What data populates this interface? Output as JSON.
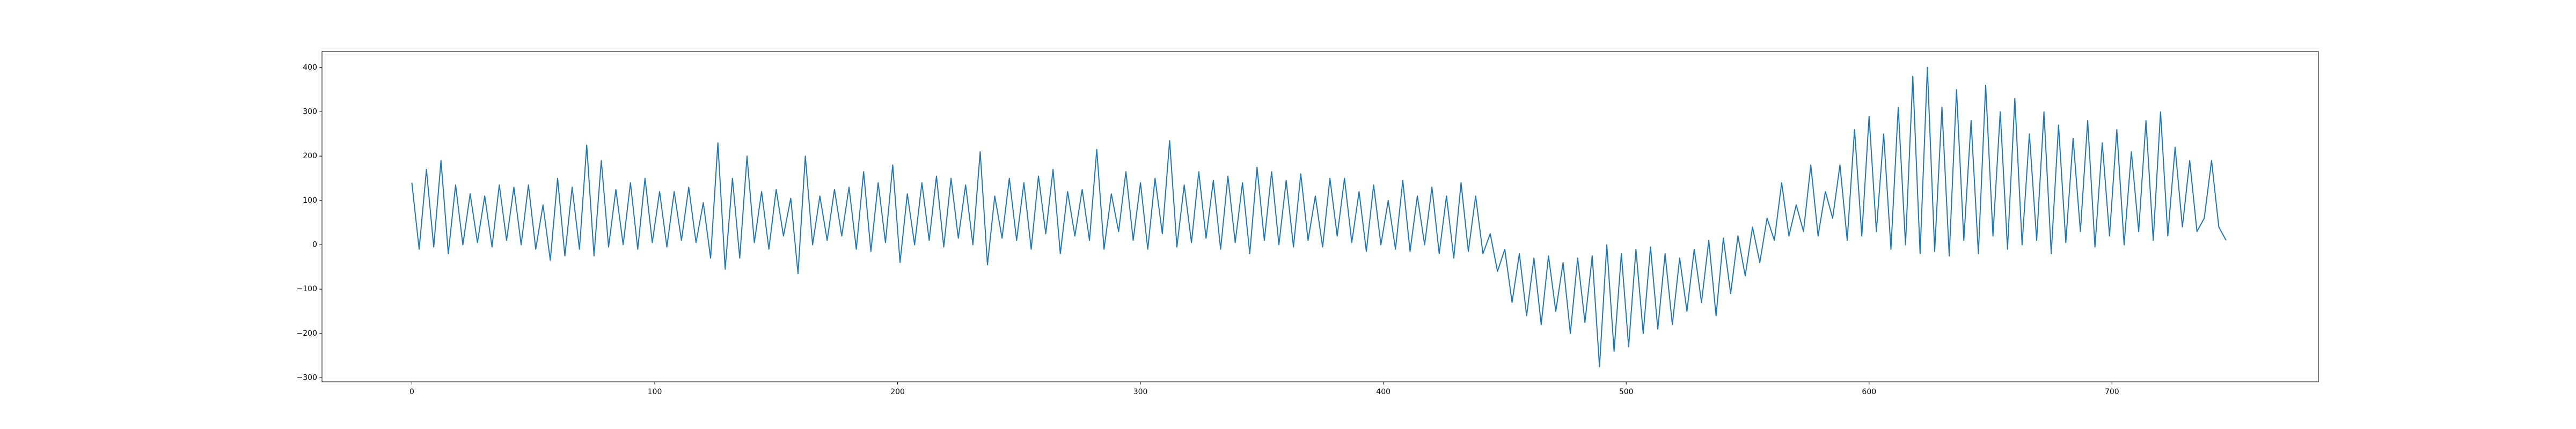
{
  "chart_data": {
    "type": "line",
    "color": "#1f77b4",
    "x": [
      0,
      3,
      6,
      9,
      12,
      15,
      18,
      21,
      24,
      27,
      30,
      33,
      36,
      39,
      42,
      45,
      48,
      51,
      54,
      57,
      60,
      63,
      66,
      69,
      72,
      75,
      78,
      81,
      84,
      87,
      90,
      93,
      96,
      99,
      102,
      105,
      108,
      111,
      114,
      117,
      120,
      123,
      126,
      129,
      132,
      135,
      138,
      141,
      144,
      147,
      150,
      153,
      156,
      159,
      162,
      165,
      168,
      171,
      174,
      177,
      180,
      183,
      186,
      189,
      192,
      195,
      198,
      201,
      204,
      207,
      210,
      213,
      216,
      219,
      222,
      225,
      228,
      231,
      234,
      237,
      240,
      243,
      246,
      249,
      252,
      255,
      258,
      261,
      264,
      267,
      270,
      273,
      276,
      279,
      282,
      285,
      288,
      291,
      294,
      297,
      300,
      303,
      306,
      309,
      312,
      315,
      318,
      321,
      324,
      327,
      330,
      333,
      336,
      339,
      342,
      345,
      348,
      351,
      354,
      357,
      360,
      363,
      366,
      369,
      372,
      375,
      378,
      381,
      384,
      387,
      390,
      393,
      396,
      399,
      402,
      405,
      408,
      411,
      414,
      417,
      420,
      423,
      426,
      429,
      432,
      435,
      438,
      441,
      444,
      447,
      450,
      453,
      456,
      459,
      462,
      465,
      468,
      471,
      474,
      477,
      480,
      483,
      486,
      489,
      492,
      495,
      498,
      501,
      504,
      507,
      510,
      513,
      516,
      519,
      522,
      525,
      528,
      531,
      534,
      537,
      540,
      543,
      546,
      549,
      552,
      555,
      558,
      561,
      564,
      567,
      570,
      573,
      576,
      579,
      582,
      585,
      588,
      591,
      594,
      597,
      600,
      603,
      606,
      609,
      612,
      615,
      618,
      621,
      624,
      627,
      630,
      633,
      636,
      639,
      642,
      645,
      648,
      651,
      654,
      657,
      660,
      663,
      666,
      669,
      672,
      675,
      678,
      681,
      684,
      687,
      690,
      693,
      696,
      699,
      702,
      705,
      708,
      711,
      714,
      717,
      720,
      723,
      726,
      729,
      732,
      735,
      738,
      741,
      744,
      747
    ],
    "values": [
      140,
      -10,
      170,
      -5,
      190,
      -20,
      135,
      0,
      115,
      5,
      110,
      -5,
      135,
      10,
      130,
      0,
      135,
      -10,
      90,
      -35,
      150,
      -25,
      130,
      -10,
      225,
      -25,
      190,
      -5,
      125,
      0,
      140,
      -10,
      150,
      5,
      120,
      -5,
      120,
      10,
      130,
      5,
      95,
      -30,
      230,
      -55,
      150,
      -30,
      200,
      5,
      120,
      -10,
      125,
      20,
      105,
      -65,
      200,
      0,
      110,
      10,
      125,
      20,
      130,
      -10,
      165,
      -15,
      140,
      5,
      180,
      -40,
      115,
      0,
      140,
      10,
      155,
      -5,
      150,
      15,
      135,
      0,
      210,
      -45,
      110,
      15,
      150,
      10,
      140,
      -10,
      155,
      25,
      170,
      -20,
      120,
      20,
      125,
      10,
      215,
      -10,
      115,
      30,
      165,
      10,
      140,
      -10,
      150,
      25,
      235,
      -5,
      135,
      5,
      165,
      15,
      145,
      -10,
      155,
      5,
      140,
      -20,
      175,
      10,
      165,
      0,
      145,
      -5,
      160,
      10,
      110,
      -5,
      150,
      20,
      150,
      5,
      120,
      -15,
      135,
      0,
      100,
      -10,
      145,
      -15,
      110,
      0,
      130,
      -20,
      110,
      -30,
      140,
      -15,
      110,
      -20,
      25,
      -60,
      -10,
      -130,
      -20,
      -160,
      -30,
      -180,
      -25,
      -150,
      -40,
      -200,
      -30,
      -175,
      -25,
      -275,
      0,
      -240,
      -20,
      -230,
      -10,
      -200,
      -5,
      -190,
      -20,
      -180,
      -30,
      -150,
      -10,
      -130,
      10,
      -160,
      15,
      -110,
      20,
      -70,
      40,
      -40,
      60,
      10,
      140,
      20,
      90,
      30,
      180,
      20,
      120,
      60,
      180,
      10,
      260,
      20,
      290,
      30,
      250,
      -10,
      310,
      0,
      380,
      -20,
      400,
      -15,
      310,
      -25,
      350,
      10,
      280,
      -20,
      360,
      20,
      300,
      -10,
      330,
      0,
      250,
      10,
      300,
      -20,
      270,
      5,
      240,
      30,
      280,
      -5,
      230,
      20,
      260,
      0,
      210,
      30,
      280,
      10,
      300,
      20,
      220,
      40,
      190,
      30,
      60,
      190,
      40,
      10
    ],
    "xlim": [
      -37,
      785
    ],
    "ylim": [
      -309,
      436
    ],
    "xticks": [
      0,
      100,
      200,
      300,
      400,
      500,
      600,
      700
    ],
    "yticks": [
      {
        "value": -300,
        "label": "−300"
      },
      {
        "value": -200,
        "label": "−200"
      },
      {
        "value": -100,
        "label": "−100"
      },
      0,
      100,
      200,
      300,
      400
    ]
  }
}
